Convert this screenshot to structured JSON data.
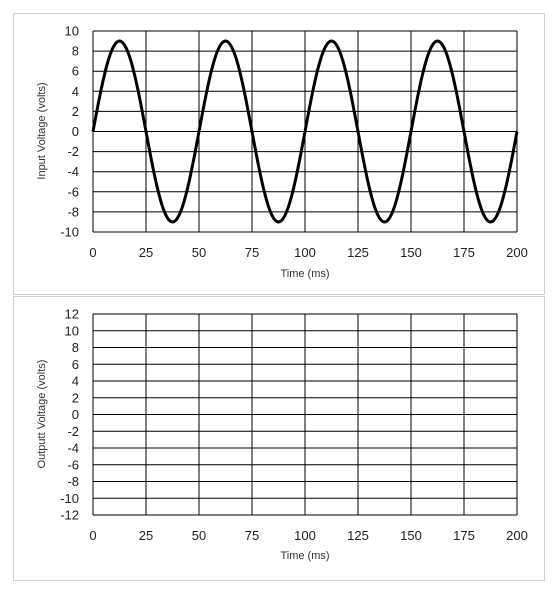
{
  "chart_data": [
    {
      "type": "line",
      "xlabel": "Time (ms)",
      "ylabel": "Input Voltage (volts)",
      "xlim": [
        0,
        200
      ],
      "ylim": [
        -10,
        10
      ],
      "xticks": [
        "0",
        "25",
        "50",
        "75",
        "100",
        "125",
        "150",
        "175",
        "200"
      ],
      "yticks": [
        "10",
        "8",
        "6",
        "4",
        "2",
        "0",
        "-2",
        "-4",
        "-6",
        "-8",
        "-10"
      ],
      "grid": true,
      "series": [
        {
          "amplitude": 9,
          "period_ms": 50,
          "x": [
            0,
            12.5,
            25,
            37.5,
            50,
            62.5,
            75,
            87.5,
            100,
            112.5,
            125,
            137.5,
            150,
            162.5,
            175,
            187.5,
            200
          ],
          "values": [
            0,
            9,
            0,
            -9,
            0,
            9,
            0,
            -9,
            0,
            9,
            0,
            -9,
            0,
            9,
            0,
            -9,
            0
          ],
          "color": "#000000"
        }
      ]
    },
    {
      "type": "line",
      "xlabel": "Time (ms)",
      "ylabel": "Outputt Voltage (volts)",
      "xlim": [
        0,
        200
      ],
      "ylim": [
        -12,
        12
      ],
      "xticks": [
        "0",
        "25",
        "50",
        "75",
        "100",
        "125",
        "150",
        "175",
        "200"
      ],
      "yticks": [
        "12",
        "10",
        "8",
        "6",
        "4",
        "2",
        "0",
        "-2",
        "-4",
        "-6",
        "-8",
        "-10",
        "-12"
      ],
      "grid": true,
      "series": []
    }
  ]
}
